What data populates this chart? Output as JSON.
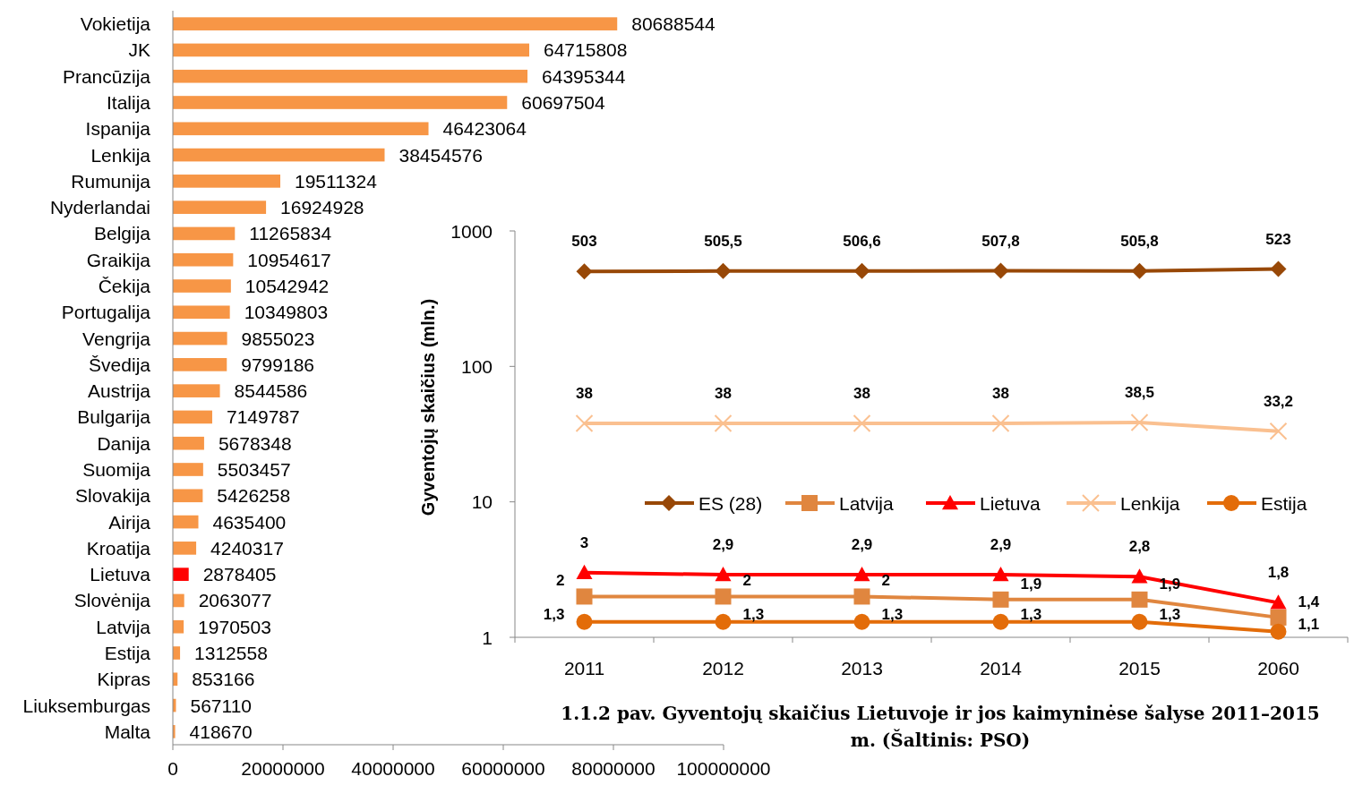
{
  "chart_data": [
    {
      "type": "bar",
      "orientation": "horizontal",
      "categories": [
        "Vokietija",
        "JK",
        "Prancūzija",
        "Italija",
        "Ispanija",
        "Lenkija",
        "Rumunija",
        "Nyderlandai",
        "Belgija",
        "Graikija",
        "Čekija",
        "Portugalija",
        "Vengrija",
        "Švedija",
        "Austrija",
        "Bulgarija",
        "Danija",
        "Suomija",
        "Slovakija",
        "Airija",
        "Kroatija",
        "Lietuva",
        "Slovėnija",
        "Latvija",
        "Estija",
        "Kipras",
        "Liuksemburgas",
        "Malta"
      ],
      "values": [
        80688544,
        64715808,
        64395344,
        60697504,
        46423064,
        38454576,
        19511324,
        16924928,
        11265834,
        10954617,
        10542942,
        10349803,
        9855023,
        9799186,
        8544586,
        7149787,
        5678348,
        5503457,
        5426258,
        4635400,
        4240317,
        2878405,
        2063077,
        1970503,
        1312558,
        853166,
        567110,
        418670
      ],
      "colors": [
        "#f79646",
        "#f79646",
        "#f79646",
        "#f79646",
        "#f79646",
        "#f79646",
        "#f79646",
        "#f79646",
        "#f79646",
        "#f79646",
        "#f79646",
        "#f79646",
        "#f79646",
        "#f79646",
        "#f79646",
        "#f79646",
        "#f79646",
        "#f79646",
        "#f79646",
        "#f79646",
        "#f79646",
        "#ff0000",
        "#f79646",
        "#f79646",
        "#f79646",
        "#f79646",
        "#f79646",
        "#f79646"
      ],
      "xlim": [
        0,
        100000000
      ],
      "xticks": [
        0,
        20000000,
        40000000,
        60000000,
        80000000,
        100000000
      ],
      "data_labels": true,
      "grid": false
    },
    {
      "type": "line",
      "title": "1.1.2 pav. Gyventojų skaičius Lietuvoje ir jos kaimyninėse šalyse 2011–2015 m. (Šaltinis: PSO)",
      "ylabel": "Gyventojų skaičius (mln.)",
      "categories": [
        "2011",
        "2012",
        "2013",
        "2014",
        "2015",
        "2060"
      ],
      "log": "y",
      "ylim": [
        1,
        1000
      ],
      "yticks": [
        1,
        10,
        100,
        1000
      ],
      "grid": false,
      "legend": "center",
      "series": [
        {
          "name": "ES (28)",
          "color": "#984807",
          "marker": "diamond",
          "values": [
            503,
            505.5,
            506.6,
            507.8,
            505.8,
            523
          ],
          "value_labels": [
            "503",
            "505,5",
            "506,6",
            "507,8",
            "505,8",
            "523"
          ]
        },
        {
          "name": "Latvija",
          "color": "#e0863f",
          "marker": "square",
          "values": [
            2,
            2,
            2,
            1.9,
            1.9,
            1.4
          ],
          "value_labels": [
            "2",
            "2",
            "2",
            "1,9",
            "1,9",
            "1,4"
          ]
        },
        {
          "name": "Lietuva",
          "color": "#ff0000",
          "marker": "triangle",
          "values": [
            3,
            2.9,
            2.9,
            2.9,
            2.8,
            1.8
          ],
          "value_labels": [
            "3",
            "2,9",
            "2,9",
            "2,9",
            "2,8",
            "1,8"
          ]
        },
        {
          "name": "Lenkija",
          "color": "#fac090",
          "marker": "cross",
          "values": [
            38,
            38,
            38,
            38,
            38.5,
            33.2
          ],
          "value_labels": [
            "38",
            "38",
            "38",
            "38",
            "38,5",
            "33,2"
          ]
        },
        {
          "name": "Estija",
          "color": "#e36c09",
          "marker": "circle",
          "values": [
            1.3,
            1.3,
            1.3,
            1.3,
            1.3,
            1.1
          ],
          "value_labels": [
            "1,3",
            "1,3",
            "1,3",
            "1,3",
            "1,3",
            "1,1"
          ]
        }
      ]
    }
  ]
}
